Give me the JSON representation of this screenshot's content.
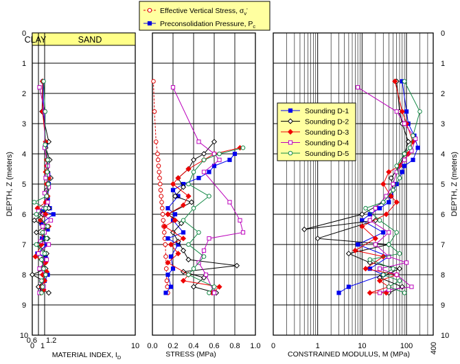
{
  "chart_data": [
    {
      "type": "scatter",
      "panel": "material-index",
      "xscale": "linear",
      "xlim": [
        0,
        10
      ],
      "ylim": [
        0,
        10
      ],
      "xticks": [
        0,
        10
      ],
      "extra_ticks": [
        "0.6",
        "1",
        "1.2"
      ],
      "yticks": [
        0,
        1,
        2,
        3,
        4,
        5,
        6,
        7,
        8,
        9,
        10
      ],
      "xlabel": "MATERIAL INDEX, I",
      "xlabel_sub": "D",
      "ylabel": "DEPTH, Z (meters)",
      "zones": [
        "CLAY",
        "SAND"
      ],
      "series": [
        {
          "name": "Sounding D-1",
          "x": [
            1.05,
            1.1,
            1.3,
            1.5,
            1.55,
            1.6,
            1.5,
            1.7,
            1.0,
            2.05,
            0.9,
            1.5,
            0.95,
            1.4,
            0.5,
            1.3,
            0.9,
            1.5,
            1.2,
            0.8,
            0.75
          ],
          "y": [
            1.6,
            2.6,
            3.7,
            4.2,
            4.7,
            5.0,
            5.5,
            5.8,
            5.9,
            6.0,
            6.3,
            6.5,
            6.8,
            7.0,
            7.3,
            7.4,
            7.8,
            8.0,
            8.2,
            8.4,
            8.6
          ]
        },
        {
          "name": "Sounding D-2",
          "x": [
            1.0,
            0.95,
            1.6,
            1.3,
            1.7,
            1.5,
            1.8,
            1.4,
            1.6,
            1.0,
            0.2,
            1.2,
            0.4,
            1.5,
            0.55,
            1.4,
            0.9,
            1.3,
            0.0,
            1.1,
            0.6,
            1.0,
            1.6
          ],
          "y": [
            1.6,
            2.6,
            3.6,
            3.8,
            4.2,
            4.6,
            4.8,
            5.2,
            5.8,
            6.0,
            6.2,
            6.4,
            6.6,
            6.8,
            7.0,
            7.3,
            7.5,
            7.8,
            8.0,
            8.2,
            8.4,
            8.5,
            8.6
          ]
        },
        {
          "name": "Sounding D-3",
          "x": [
            1.0,
            1.0,
            1.3,
            1.4,
            1.4,
            1.3,
            1.6,
            1.4,
            1.5,
            1.3,
            0.5,
            1.3,
            0.8,
            1.6,
            1.0,
            0.9,
            0.3,
            1.3,
            0.9,
            1.4,
            1.0,
            1.2,
            0.9,
            1.1,
            0.8
          ],
          "y": [
            1.6,
            2.6,
            3.6,
            4.2,
            4.4,
            4.6,
            4.8,
            5.0,
            5.4,
            5.6,
            5.8,
            6.0,
            6.2,
            6.4,
            6.6,
            7.0,
            7.4,
            7.6,
            7.8,
            7.9,
            8.0,
            8.2,
            8.4,
            8.5,
            8.6
          ]
        },
        {
          "name": "Sounding D-4",
          "x": [
            0.7,
            1.2,
            1.2,
            1.5,
            1.5,
            1.3,
            1.6,
            1.2,
            1.5,
            0.6,
            1.8,
            1.0,
            1.2,
            0.8,
            1.6,
            0.6,
            1.4,
            0.7,
            1.3,
            0.9,
            1.1,
            0.7
          ],
          "y": [
            1.8,
            2.6,
            3.8,
            4.4,
            4.7,
            4.8,
            5.1,
            5.3,
            5.6,
            5.9,
            6.2,
            6.4,
            6.6,
            6.9,
            7.0,
            7.3,
            7.5,
            7.8,
            8.0,
            8.2,
            8.4,
            8.6
          ]
        },
        {
          "name": "Sounding D-5",
          "x": [
            1.1,
            1.25,
            1.25,
            1.5,
            1.45,
            1.55,
            1.4,
            0.2,
            1.3,
            0.4,
            1.5,
            1.0,
            1.4,
            0.4,
            1.2,
            0.9,
            1.1,
            1.3,
            0.9,
            1.0,
            0.9
          ],
          "y": [
            1.6,
            2.6,
            3.7,
            4.2,
            4.6,
            5.0,
            5.4,
            5.6,
            5.8,
            6.0,
            6.4,
            6.6,
            6.8,
            7.0,
            7.3,
            7.5,
            7.8,
            8.0,
            8.2,
            8.4,
            8.6
          ]
        }
      ]
    },
    {
      "type": "scatter",
      "panel": "stress",
      "xscale": "linear",
      "xlim": [
        0,
        1.0
      ],
      "ylim": [
        0,
        10
      ],
      "xticks": [
        "0.0",
        "0.2",
        "0.4",
        "0.6",
        "0.8",
        "1.0"
      ],
      "yticks": [
        0,
        1,
        2,
        3,
        4,
        5,
        6,
        7,
        8,
        9,
        10
      ],
      "xlabel": "STRESS (MPa)",
      "legend": [
        {
          "label": "Effective Vertical Stress, σ",
          "sub": "v",
          "sup": "'",
          "marker": "circle-open",
          "color": "#dd0000",
          "dash": true
        },
        {
          "label": "Preconsolidation Pressure,  P",
          "sub": "c",
          "marker": "square",
          "color": "#0000dd",
          "dash": false
        }
      ],
      "series": [
        {
          "name": "Effective Vertical Stress",
          "x": [
            0.01,
            0.02,
            0.035,
            0.05,
            0.055,
            0.06,
            0.065,
            0.07,
            0.075,
            0.08,
            0.085,
            0.09,
            0.095,
            0.1,
            0.105,
            0.11,
            0.115,
            0.12,
            0.125,
            0.13,
            0.135,
            0.14,
            0.145,
            0.15
          ],
          "y": [
            1.6,
            2.6,
            3.6,
            4.0,
            4.2,
            4.4,
            4.6,
            4.8,
            5.0,
            5.2,
            5.4,
            5.6,
            5.8,
            6.0,
            6.2,
            6.4,
            6.6,
            6.8,
            7.0,
            7.4,
            7.8,
            8.2,
            8.4,
            8.6
          ]
        },
        {
          "name": "Sounding D-1",
          "x": [
            0.8,
            0.75,
            0.6,
            0.55,
            0.45,
            0.3,
            0.2,
            0.25,
            0.15,
            0.22,
            0.2,
            0.3,
            0.15,
            0.25,
            0.18,
            0.2,
            0.15,
            0.18,
            0.13
          ],
          "y": [
            4.0,
            4.2,
            4.4,
            4.6,
            4.8,
            5.0,
            5.2,
            5.4,
            5.8,
            6.0,
            6.2,
            6.6,
            6.8,
            7.0,
            7.4,
            7.8,
            8.0,
            8.4,
            8.6
          ]
        },
        {
          "name": "Sounding D-2",
          "x": [
            0.6,
            0.5,
            0.4,
            0.35,
            0.25,
            0.3,
            0.22,
            0.38,
            0.15,
            0.28,
            0.2,
            0.25,
            0.3,
            0.35,
            0.82,
            0.3,
            0.5,
            0.4,
            0.62
          ],
          "y": [
            3.6,
            4.0,
            4.2,
            4.5,
            4.8,
            5.1,
            5.4,
            5.6,
            6.0,
            6.3,
            6.6,
            6.9,
            7.2,
            7.5,
            7.7,
            7.9,
            8.1,
            8.4,
            8.6
          ]
        },
        {
          "name": "Sounding D-3",
          "x": [
            0.85,
            0.6,
            0.5,
            0.35,
            0.25,
            0.2,
            0.35,
            0.3,
            0.15,
            0.22,
            0.12,
            0.3,
            0.18,
            0.25,
            0.15,
            0.35,
            0.3,
            0.65,
            0.58
          ],
          "y": [
            3.8,
            4.0,
            4.2,
            4.5,
            4.8,
            5.0,
            5.4,
            5.7,
            6.0,
            6.2,
            6.4,
            6.8,
            7.0,
            7.3,
            7.6,
            8.0,
            8.2,
            8.4,
            8.6
          ]
        },
        {
          "name": "Sounding D-4",
          "x": [
            0.2,
            0.45,
            0.6,
            0.65,
            0.5,
            0.75,
            0.85,
            0.88,
            0.55,
            0.5,
            0.45,
            0.52,
            0.6
          ],
          "y": [
            1.8,
            3.6,
            4.0,
            4.2,
            4.6,
            5.6,
            6.2,
            6.6,
            6.8,
            7.2,
            7.6,
            8.0,
            8.6
          ]
        },
        {
          "name": "Sounding D-5",
          "x": [
            0.88,
            0.65,
            0.5,
            0.4,
            0.35,
            0.55,
            0.4,
            0.3,
            0.45,
            0.35,
            0.5,
            0.4,
            0.35,
            0.6,
            0.55
          ],
          "y": [
            3.8,
            4.0,
            4.2,
            4.6,
            5.0,
            5.4,
            5.8,
            6.2,
            6.6,
            7.0,
            7.4,
            7.8,
            8.0,
            8.4,
            8.6
          ]
        }
      ]
    },
    {
      "type": "scatter",
      "panel": "modulus",
      "xscale": "log",
      "xlim": [
        0.1,
        400
      ],
      "ylim": [
        0,
        10
      ],
      "xticks": [
        "0",
        "1",
        "10",
        "100",
        "400"
      ],
      "yticks": [
        0,
        1,
        2,
        3,
        4,
        5,
        6,
        7,
        8,
        9,
        10
      ],
      "xlabel": "CONSTRAINED MODULUS, M (MPa)",
      "ylabel": "DEPTH, Z (meters)",
      "legend_placement": "upper-left",
      "series": [
        {
          "name": "Sounding D-1",
          "x": [
            80,
            100,
            110,
            150,
            180,
            140,
            90,
            80,
            60,
            45,
            40,
            25,
            15,
            10,
            30,
            8,
            40,
            15,
            30,
            5,
            3
          ],
          "y": [
            1.6,
            2.6,
            3.0,
            3.4,
            3.8,
            4.2,
            4.4,
            4.6,
            5.0,
            5.4,
            5.6,
            5.8,
            6.0,
            6.2,
            6.6,
            7.0,
            7.4,
            7.8,
            8.0,
            8.4,
            8.6
          ]
        },
        {
          "name": "Sounding D-2",
          "x": [
            60,
            70,
            80,
            110,
            90,
            70,
            45,
            50,
            30,
            10,
            0.5,
            20,
            1,
            40,
            5,
            15,
            70,
            25,
            80,
            40
          ],
          "y": [
            1.6,
            2.6,
            3.0,
            3.6,
            4.0,
            4.4,
            4.8,
            5.2,
            5.6,
            6.0,
            6.5,
            6.2,
            6.8,
            7.0,
            7.3,
            7.6,
            7.8,
            8.1,
            8.4,
            8.6
          ]
        },
        {
          "name": "Sounding D-3",
          "x": [
            55,
            80,
            100,
            140,
            110,
            70,
            40,
            30,
            45,
            60,
            35,
            10,
            20,
            7,
            30,
            12,
            60,
            25,
            40,
            15,
            35
          ],
          "y": [
            1.6,
            2.6,
            3.0,
            3.6,
            4.0,
            4.4,
            4.6,
            5.0,
            5.4,
            5.6,
            6.0,
            6.4,
            6.8,
            7.2,
            7.4,
            7.8,
            8.0,
            8.2,
            8.4,
            8.6,
            8.6
          ]
        },
        {
          "name": "Sounding D-4",
          "x": [
            8,
            60,
            90,
            160,
            130,
            90,
            60,
            50,
            35,
            20,
            15,
            40,
            20,
            40,
            100,
            25,
            60,
            130,
            40,
            25
          ],
          "y": [
            1.8,
            2.6,
            3.0,
            3.5,
            3.9,
            4.2,
            4.6,
            5.0,
            5.4,
            5.8,
            6.2,
            6.6,
            7.0,
            7.4,
            7.6,
            7.8,
            8.0,
            8.4,
            8.5,
            8.6
          ]
        },
        {
          "name": "Sounding D-5",
          "x": [
            90,
            200,
            140,
            120,
            90,
            60,
            70,
            50,
            30,
            12,
            25,
            60,
            40,
            70,
            15,
            50,
            30,
            70,
            40,
            90
          ],
          "y": [
            1.6,
            2.6,
            3.4,
            3.8,
            4.0,
            4.4,
            4.8,
            5.2,
            5.6,
            5.8,
            6.2,
            6.6,
            7.0,
            7.3,
            7.5,
            7.8,
            8.0,
            8.2,
            8.4,
            8.6
          ]
        }
      ]
    }
  ],
  "soundings": [
    {
      "name": "Sounding D-1",
      "color": "#0000ee",
      "marker": "square",
      "fill": true
    },
    {
      "name": "Sounding D-2",
      "color": "#000000",
      "marker": "diamond",
      "fill": false
    },
    {
      "name": "Sounding D-3",
      "color": "#ee0000",
      "marker": "diamond",
      "fill": true
    },
    {
      "name": "Sounding D-4",
      "color": "#bb00bb",
      "marker": "square",
      "fill": false
    },
    {
      "name": "Sounding D-5",
      "color": "#118844",
      "marker": "circle",
      "fill": false
    }
  ],
  "zone_fill": "#ffff88",
  "legend_fill": "#ffffa0"
}
